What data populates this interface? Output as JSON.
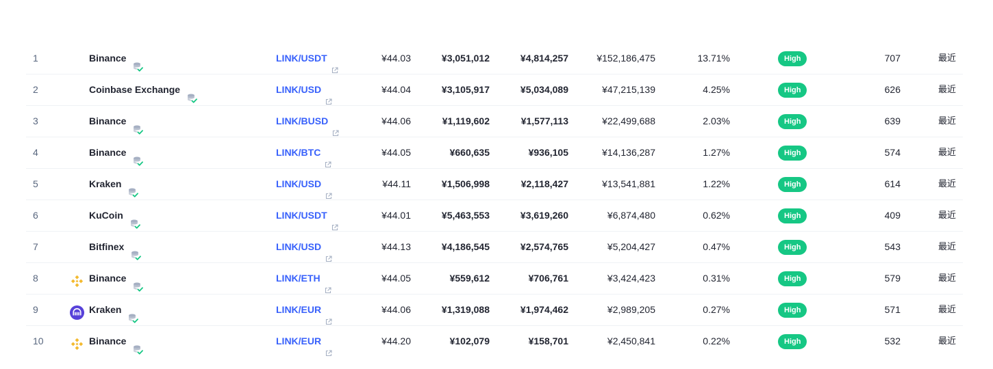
{
  "colors": {
    "link": "#3861fb",
    "confidence_high": "#16c784",
    "rank_text": "#58667e",
    "binance_yellow": "#f3ba2f",
    "kraken_purple": "#5741d9"
  },
  "rows": [
    {
      "rank": "1",
      "logo": "",
      "exchange": "Binance",
      "pair": "LINK/USDT",
      "price": "¥44.03",
      "depth_plus": "¥3,051,012",
      "depth_minus": "¥4,814,257",
      "volume": "¥152,186,475",
      "volume_pct": "13.71%",
      "confidence": "High",
      "liquidity": "707",
      "updated": "最近"
    },
    {
      "rank": "2",
      "logo": "",
      "exchange": "Coinbase Exchange",
      "pair": "LINK/USD",
      "price": "¥44.04",
      "depth_plus": "¥3,105,917",
      "depth_minus": "¥5,034,089",
      "volume": "¥47,215,139",
      "volume_pct": "4.25%",
      "confidence": "High",
      "liquidity": "626",
      "updated": "最近"
    },
    {
      "rank": "3",
      "logo": "",
      "exchange": "Binance",
      "pair": "LINK/BUSD",
      "price": "¥44.06",
      "depth_plus": "¥1,119,602",
      "depth_minus": "¥1,577,113",
      "volume": "¥22,499,688",
      "volume_pct": "2.03%",
      "confidence": "High",
      "liquidity": "639",
      "updated": "最近"
    },
    {
      "rank": "4",
      "logo": "",
      "exchange": "Binance",
      "pair": "LINK/BTC",
      "price": "¥44.05",
      "depth_plus": "¥660,635",
      "depth_minus": "¥936,105",
      "volume": "¥14,136,287",
      "volume_pct": "1.27%",
      "confidence": "High",
      "liquidity": "574",
      "updated": "最近"
    },
    {
      "rank": "5",
      "logo": "",
      "exchange": "Kraken",
      "pair": "LINK/USD",
      "price": "¥44.11",
      "depth_plus": "¥1,506,998",
      "depth_minus": "¥2,118,427",
      "volume": "¥13,541,881",
      "volume_pct": "1.22%",
      "confidence": "High",
      "liquidity": "614",
      "updated": "最近"
    },
    {
      "rank": "6",
      "logo": "",
      "exchange": "KuCoin",
      "pair": "LINK/USDT",
      "price": "¥44.01",
      "depth_plus": "¥5,463,553",
      "depth_minus": "¥3,619,260",
      "volume": "¥6,874,480",
      "volume_pct": "0.62%",
      "confidence": "High",
      "liquidity": "409",
      "updated": "最近"
    },
    {
      "rank": "7",
      "logo": "",
      "exchange": "Bitfinex",
      "pair": "LINK/USD",
      "price": "¥44.13",
      "depth_plus": "¥4,186,545",
      "depth_minus": "¥2,574,765",
      "volume": "¥5,204,427",
      "volume_pct": "0.47%",
      "confidence": "High",
      "liquidity": "543",
      "updated": "最近"
    },
    {
      "rank": "8",
      "logo": "binance-logo-icon",
      "exchange": "Binance",
      "pair": "LINK/ETH",
      "price": "¥44.05",
      "depth_plus": "¥559,612",
      "depth_minus": "¥706,761",
      "volume": "¥3,424,423",
      "volume_pct": "0.31%",
      "confidence": "High",
      "liquidity": "579",
      "updated": "最近"
    },
    {
      "rank": "9",
      "logo": "kraken-logo-icon",
      "exchange": "Kraken",
      "pair": "LINK/EUR",
      "price": "¥44.06",
      "depth_plus": "¥1,319,088",
      "depth_minus": "¥1,974,462",
      "volume": "¥2,989,205",
      "volume_pct": "0.27%",
      "confidence": "High",
      "liquidity": "571",
      "updated": "最近"
    },
    {
      "rank": "10",
      "logo": "binance-logo-icon",
      "exchange": "Binance",
      "pair": "LINK/EUR",
      "price": "¥44.20",
      "depth_plus": "¥102,079",
      "depth_minus": "¥158,701",
      "volume": "¥2,450,841",
      "volume_pct": "0.22%",
      "confidence": "High",
      "liquidity": "532",
      "updated": "最近"
    }
  ]
}
